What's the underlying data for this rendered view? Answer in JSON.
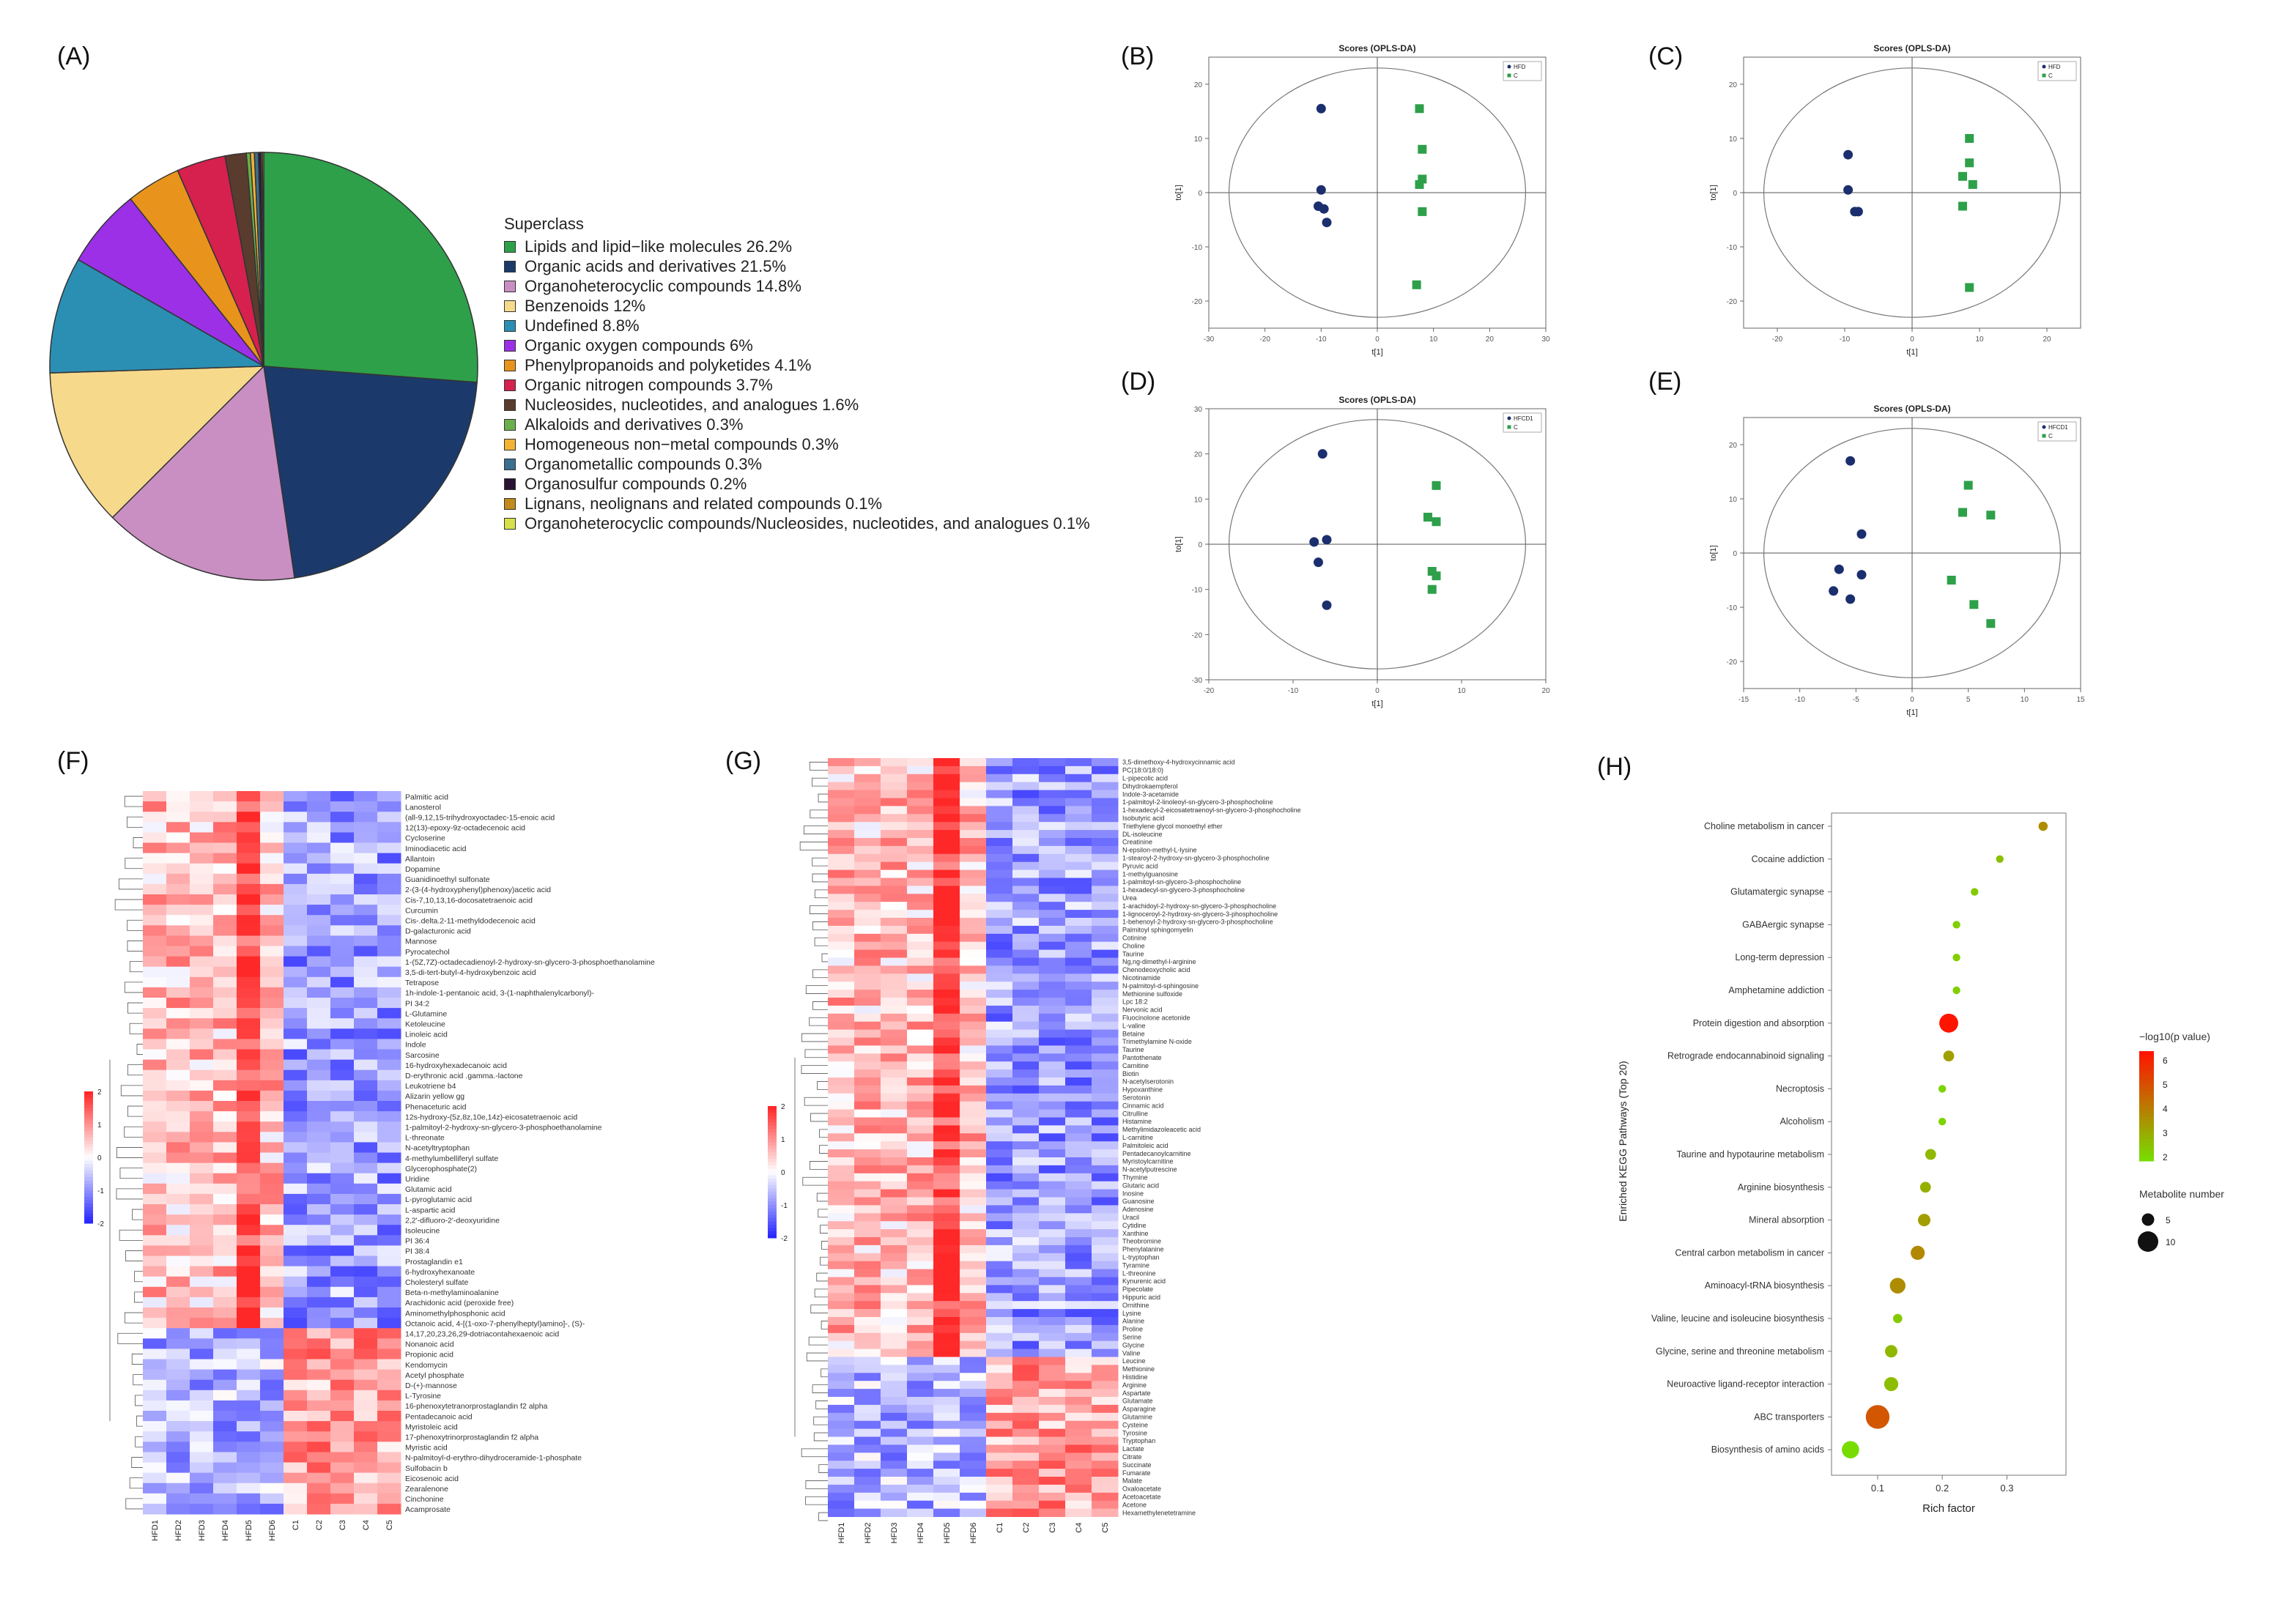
{
  "panels": {
    "A": "(A)",
    "B": "(B)",
    "C": "(C)",
    "D": "(D)",
    "E": "(E)",
    "F": "(F)",
    "G": "(G)",
    "H": "(H)"
  },
  "chart_data": [
    {
      "id": "A",
      "type": "pie",
      "legend_title": "Superclass",
      "slices": [
        {
          "label": "Lipids and lipid−like molecules 26.2%",
          "value": 26.2,
          "color": "#2ea04a"
        },
        {
          "label": "Organic acids and derivatives 21.5%",
          "value": 21.5,
          "color": "#1b3a6b"
        },
        {
          "label": "Organoheterocyclic compounds 14.8%",
          "value": 14.8,
          "color": "#c98fc2"
        },
        {
          "label": "Benzenoids 12%",
          "value": 12,
          "color": "#f7d98c"
        },
        {
          "label": "Undefined 8.8%",
          "value": 8.8,
          "color": "#2b8fb3"
        },
        {
          "label": "Organic oxygen compounds 6%",
          "value": 6,
          "color": "#9b30e6"
        },
        {
          "label": "Phenylpropanoids and polyketides 4.1%",
          "value": 4.1,
          "color": "#e8941c"
        },
        {
          "label": "Organic nitrogen compounds 3.7%",
          "value": 3.7,
          "color": "#d6204e"
        },
        {
          "label": "Nucleosides, nucleotides, and analogues 1.6%",
          "value": 1.6,
          "color": "#5a3c2e"
        },
        {
          "label": "Alkaloids and derivatives 0.3%",
          "value": 0.3,
          "color": "#6ab04c"
        },
        {
          "label": "Homogeneous non−metal compounds 0.3%",
          "value": 0.3,
          "color": "#f2b233"
        },
        {
          "label": "Organometallic compounds 0.3%",
          "value": 0.3,
          "color": "#3a6f8f"
        },
        {
          "label": "Organosulfur compounds 0.2%",
          "value": 0.2,
          "color": "#2a1330"
        },
        {
          "label": "Lignans, neolignans and related compounds 0.1%",
          "value": 0.1,
          "color": "#c28a1a"
        },
        {
          "label": "Organoheterocyclic compounds/Nucleosides, nucleotides, and analogues 0.1%",
          "value": 0.1,
          "color": "#d7e04a"
        }
      ]
    },
    {
      "id": "B",
      "type": "scatter",
      "title": "Scores (OPLS-DA)",
      "xlabel": "t[1]",
      "ylabel": "to[1]",
      "xlim": [
        -30,
        30
      ],
      "ylim": [
        -25,
        25
      ],
      "xticks": [
        -30,
        -20,
        -10,
        0,
        10,
        20,
        30
      ],
      "yticks": [
        -20,
        -10,
        0,
        10,
        20
      ],
      "legend": [
        "HFD",
        "C"
      ],
      "groupA": [
        [
          -10,
          15.5
        ],
        [
          -10,
          0.5
        ],
        [
          -10.5,
          -2.5
        ],
        [
          -9.5,
          -3
        ],
        [
          -9,
          -5.5
        ]
      ],
      "groupB": [
        [
          7.5,
          15.5
        ],
        [
          8,
          8
        ],
        [
          8,
          2.5
        ],
        [
          7.5,
          1.5
        ],
        [
          8,
          -3.5
        ],
        [
          7,
          -17
        ]
      ]
    },
    {
      "id": "C",
      "type": "scatter",
      "title": "Scores (OPLS-DA)",
      "xlabel": "t[1]",
      "ylabel": "to[1]",
      "xlim": [
        -25,
        25
      ],
      "ylim": [
        -25,
        25
      ],
      "xticks": [
        -20,
        -10,
        0,
        10,
        20
      ],
      "yticks": [
        -20,
        -10,
        0,
        10,
        20
      ],
      "legend": [
        "HFD",
        "C"
      ],
      "groupA": [
        [
          -9.5,
          7
        ],
        [
          -9.5,
          0.5
        ],
        [
          -8.5,
          -3.5
        ],
        [
          -8,
          -3.5
        ]
      ],
      "groupB": [
        [
          8.5,
          10
        ],
        [
          8.5,
          5.5
        ],
        [
          7.5,
          3
        ],
        [
          9,
          1.5
        ],
        [
          7.5,
          -2.5
        ],
        [
          8.5,
          -17.5
        ]
      ]
    },
    {
      "id": "D",
      "type": "scatter",
      "title": "Scores (OPLS-DA)",
      "xlabel": "t[1]",
      "ylabel": "to[1]",
      "xlim": [
        -20,
        20
      ],
      "ylim": [
        -30,
        30
      ],
      "xticks": [
        -20,
        -10,
        0,
        10,
        20
      ],
      "yticks": [
        -30,
        -20,
        -10,
        0,
        10,
        20,
        30
      ],
      "legend": [
        "HFCD1",
        "C"
      ],
      "groupA": [
        [
          -6.5,
          20
        ],
        [
          -6,
          1
        ],
        [
          -7.5,
          0.5
        ],
        [
          -7,
          -4
        ],
        [
          -6,
          -13.5
        ]
      ],
      "groupB": [
        [
          7,
          13
        ],
        [
          6,
          6
        ],
        [
          7,
          5
        ],
        [
          6.5,
          -6
        ],
        [
          7,
          -7
        ],
        [
          6.5,
          -10
        ]
      ]
    },
    {
      "id": "E",
      "type": "scatter",
      "title": "Scores (OPLS-DA)",
      "xlabel": "t[1]",
      "ylabel": "to[1]",
      "xlim": [
        -15,
        15
      ],
      "ylim": [
        -25,
        25
      ],
      "xticks": [
        -15,
        -10,
        -5,
        0,
        5,
        10,
        15
      ],
      "yticks": [
        -20,
        -10,
        0,
        10,
        20
      ],
      "legend": [
        "HFCD1",
        "C"
      ],
      "groupA": [
        [
          -5.5,
          17
        ],
        [
          -4.5,
          3.5
        ],
        [
          -6.5,
          -3
        ],
        [
          -4.5,
          -4
        ],
        [
          -7,
          -7
        ],
        [
          -5.5,
          -8.5
        ]
      ],
      "groupB": [
        [
          5,
          12.5
        ],
        [
          4.5,
          7.5
        ],
        [
          7,
          7
        ],
        [
          3.5,
          -5
        ],
        [
          5.5,
          -9.5
        ],
        [
          7,
          -13
        ]
      ]
    },
    {
      "id": "F",
      "type": "heatmap",
      "colorbar_ticks": [
        "2",
        "1",
        "0",
        "-1",
        "-2"
      ],
      "columns": [
        "HFD1",
        "HFD2",
        "HFD3",
        "HFD4",
        "HFD5",
        "HFD6",
        "C1",
        "C2",
        "C3",
        "C4",
        "C5"
      ],
      "rows": [
        "Palmitic acid",
        "Lanosterol",
        "(all-9,12,15-trihydroxyoctadec-15-enoic acid",
        "12(13)-epoxy-9z-octadecenoic acid",
        "Cycloserine",
        "Iminodiacetic acid",
        "Allantoin",
        "Dopamine",
        "Guanidinoethyl sulfonate",
        "2-(3-(4-hydroxyphenyl)phenoxy)acetic acid",
        "Cis-7,10,13,16-docosatetraenoic acid",
        "Curcumin",
        "Cis-.delta.2-11-methyldodecenoic acid",
        "D-galacturonic acid",
        "Mannose",
        "Pyrocatechol",
        "1-(5Z,7Z)-octadecadienoyl-2-hydroxy-sn-glycero-3-phosphoethanolamine",
        "3,5-di-tert-butyl-4-hydroxybenzoic acid",
        "Tetrapose",
        "1h-indole-1-pentanoic acid, 3-(1-naphthalenylcarbonyl)-",
        "PI 34:2",
        "L-Glutamine",
        "Ketoleucine",
        "Linoleic acid",
        "Indole",
        "Sarcosine",
        "16-hydroxyhexadecanoic acid",
        "D-erythronic acid .gamma.-lactone",
        "Leukotriene b4",
        "Alizarin yellow gg",
        "Phenaceturic acid",
        "12s-hydroxy-(5z,8z,10e,14z)-eicosatetraenoic acid",
        "1-palmitoyl-2-hydroxy-sn-glycero-3-phosphoethanolamine",
        "L-threonate",
        "N-acetyltryptophan",
        "4-methylumbelliferyl sulfate",
        "Glycerophosphate(2)",
        "Uridine",
        "Glutamic acid",
        "L-pyroglutamic acid",
        "L-aspartic acid",
        "2,2'-difluoro-2'-deoxyuridine",
        "Isoleucine",
        "PI 36:4",
        "PI 38:4",
        "Prostaglandin e1",
        "6-hydroxyhexanoate",
        "Cholesteryl sulfate",
        "Beta-n-methylaminoalanine",
        "Arachidonic acid (peroxide free)",
        "Aminomethylphosphonic acid",
        "Octanoic acid, 4-[(1-oxo-7-phenylheptyl)amino]-, (S)-",
        "14,17,20,23,26,29-dotriacontahexaenoic acid",
        "Nonanoic acid",
        "Propionic acid",
        "Kendomycin",
        "Acetyl phosphate",
        "D-(+)-mannose",
        "L-Tyrosine",
        "16-phenoxytetranorprostaglandin f2 alpha",
        "Pentadecanoic acid",
        "Myristoleic acid",
        "17-phenoxytrinorprostaglandin f2 alpha",
        "Myristic acid",
        "N-palmitoyl-d-erythro-dihydroceramide-1-phosphate",
        "Sulfobacin b",
        "Eicosenoic acid",
        "Zearalenone",
        "Cinchonine",
        "Acamprosate"
      ]
    },
    {
      "id": "G",
      "type": "heatmap",
      "colorbar_ticks": [
        "2",
        "1",
        "0",
        "-1",
        "-2"
      ],
      "columns": [
        "HFD1",
        "HFD2",
        "HFD3",
        "HFD4",
        "HFD5",
        "HFD6",
        "C1",
        "C2",
        "C3",
        "C4",
        "C5"
      ],
      "rows": [
        "3,5-dimethoxy-4-hydroxycinnamic acid",
        "PC(18:0/18:0)",
        "L-pipecolic acid",
        "Dihydrokaempferol",
        "Indole-3-acetamide",
        "1-palmitoyl-2-linoleoyl-sn-glycero-3-phosphocholine",
        "1-hexadecyl-2-eicosatetraenoyl-sn-glycero-3-phosphocholine",
        "Isobutyric acid",
        "Triethylene glycol monoethyl ether",
        "DL-isoleucine",
        "Creatinine",
        "N-epsilon-methyl-L-lysine",
        "1-stearoyl-2-hydroxy-sn-glycero-3-phosphocholine",
        "Pyruvic acid",
        "1-methylguanosine",
        "1-palmitoyl-sn-glycero-3-phosphocholine",
        "1-hexadecyl-sn-glycero-3-phosphocholine",
        "Urea",
        "1-arachidoyl-2-hydroxy-sn-glycero-3-phosphocholine",
        "1-lignoceroyl-2-hydroxy-sn-glycero-3-phosphocholine",
        "1-behenoyl-2-hydroxy-sn-glycero-3-phosphocholine",
        "Palmitoyl sphingomyelin",
        "Cotinine",
        "Choline",
        "Taurine",
        "Ng,ng-dimethyl-l-arginine",
        "Chenodeoxycholic acid",
        "Nicotinamide",
        "N-palmitoyl-d-sphingosine",
        "Methionine sulfoxide",
        "Lpc 18:2",
        "Nervonic acid",
        "Fluocinolone acetonide",
        "L-valine",
        "Betaine",
        "Trimethylamine N-oxide",
        "Taurine",
        "Pantothenate",
        "Carnitine",
        "Biotin",
        "N-acetylserotonin",
        "Hypoxanthine",
        "Serotonin",
        "Cinnamic acid",
        "Citrulline",
        "Histamine",
        "Methylimidazoleacetic acid",
        "L-carnitine",
        "Palmitoleic acid",
        "Pentadecanoylcarnitine",
        "Myristoylcarnitine",
        "N-acetylputrescine",
        "Thymine",
        "Glutaric acid",
        "Inosine",
        "Guanosine",
        "Adenosine",
        "Uracil",
        "Cytidine",
        "Xanthine",
        "Theobromine",
        "Phenylalanine",
        "L-tryptophan",
        "Tyramine",
        "L-threonine",
        "Kynurenic acid",
        "Pipecolate",
        "Hippuric acid",
        "Ornithine",
        "Lysine",
        "Alanine",
        "Proline",
        "Serine",
        "Glycine",
        "Valine",
        "Leucine",
        "Methionine",
        "Histidine",
        "Arginine",
        "Aspartate",
        "Glutamate",
        "Asparagine",
        "Glutamine",
        "Cysteine",
        "Tyrosine",
        "Tryptophan",
        "Lactate",
        "Citrate",
        "Succinate",
        "Fumarate",
        "Malate",
        "Oxaloacetate",
        "Acetoacetate",
        "Acetone",
        "Hexamethylenetetramine"
      ]
    },
    {
      "id": "H",
      "type": "scatter",
      "ylabel": "Enriched KEGG Pathways (Top 20)",
      "xlabel": "Rich factor",
      "xlim": [
        0.04,
        0.38
      ],
      "xticks": [
        0.1,
        0.2,
        0.3
      ],
      "color_title": "−log10(p value)",
      "color_ticks": [
        6,
        5,
        4,
        3,
        2
      ],
      "size_title": "Metabolite number",
      "size_ticks": [
        5,
        10
      ],
      "points": [
        {
          "pathway": "Choline metabolism in cancer",
          "rich": 0.356,
          "logp": 3.8,
          "n": 3
        },
        {
          "pathway": "Cocaine addiction",
          "rich": 0.289,
          "logp": 2.6,
          "n": 2
        },
        {
          "pathway": "Glutamatergic synapse",
          "rich": 0.25,
          "logp": 2.4,
          "n": 2
        },
        {
          "pathway": "GABAergic synapse",
          "rich": 0.222,
          "logp": 2.3,
          "n": 2
        },
        {
          "pathway": "Long-term depression",
          "rich": 0.222,
          "logp": 2.3,
          "n": 2
        },
        {
          "pathway": "Amphetamine addiction",
          "rich": 0.222,
          "logp": 2.3,
          "n": 2
        },
        {
          "pathway": "Protein digestion and absorption",
          "rich": 0.21,
          "logp": 6.5,
          "n": 9
        },
        {
          "pathway": "Retrograde endocannabinoid signaling",
          "rich": 0.21,
          "logp": 3.4,
          "n": 4
        },
        {
          "pathway": "Necroptosis",
          "rich": 0.2,
          "logp": 2.2,
          "n": 2
        },
        {
          "pathway": "Alcoholism",
          "rich": 0.2,
          "logp": 2.2,
          "n": 2
        },
        {
          "pathway": "Taurine and hypotaurine metabolism",
          "rich": 0.182,
          "logp": 2.8,
          "n": 4
        },
        {
          "pathway": "Arginine biosynthesis",
          "rich": 0.174,
          "logp": 3.0,
          "n": 4
        },
        {
          "pathway": "Mineral absorption",
          "rich": 0.172,
          "logp": 3.4,
          "n": 5
        },
        {
          "pathway": "Central carbon metabolism in cancer",
          "rich": 0.162,
          "logp": 3.9,
          "n": 6
        },
        {
          "pathway": "Aminoacyl-tRNA biosynthesis",
          "rich": 0.131,
          "logp": 3.8,
          "n": 7
        },
        {
          "pathway": "Valine, leucine and isoleucine biosynthesis",
          "rich": 0.131,
          "logp": 2.4,
          "n": 3
        },
        {
          "pathway": "Glycine, serine and threonine metabolism",
          "rich": 0.121,
          "logp": 2.8,
          "n": 5
        },
        {
          "pathway": "Neuroactive ligand-receptor interaction",
          "rich": 0.121,
          "logp": 2.7,
          "n": 6
        },
        {
          "pathway": "ABC transporters",
          "rich": 0.1,
          "logp": 5.0,
          "n": 12
        },
        {
          "pathway": "Biosynthesis of amino acids",
          "rich": 0.058,
          "logp": 2.0,
          "n": 8
        }
      ]
    }
  ]
}
